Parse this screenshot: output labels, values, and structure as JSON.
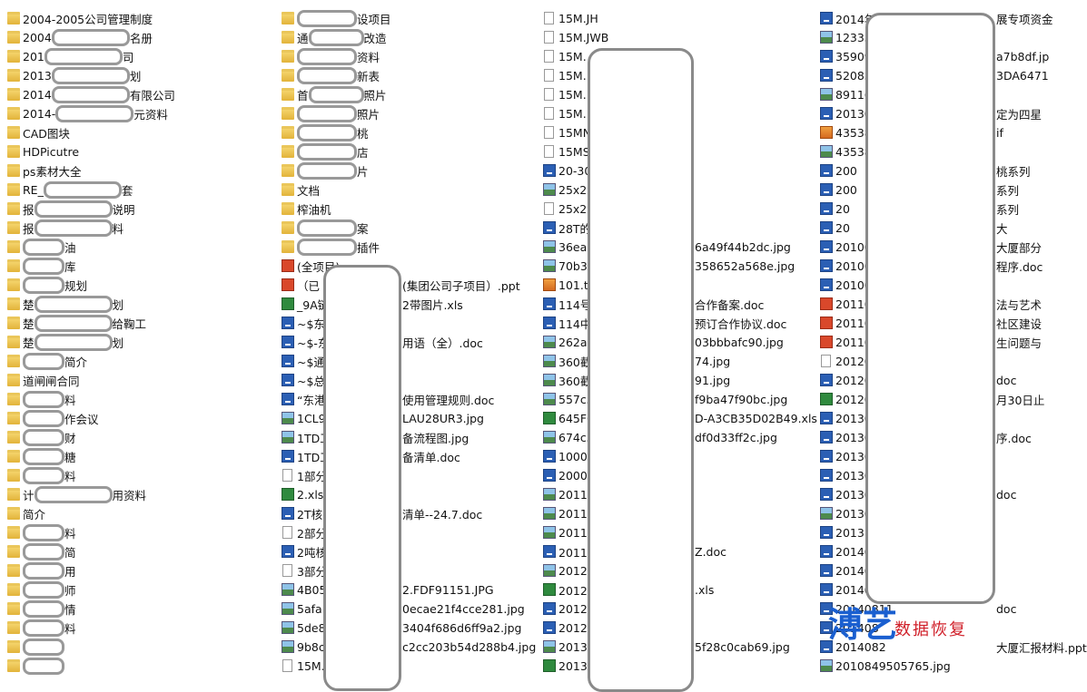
{
  "columns": [
    [
      {
        "icon": "folder",
        "parts": [
          "2004-2005公司管理制度"
        ]
      },
      {
        "icon": "folder",
        "parts": [
          "2004",
          "名册"
        ]
      },
      {
        "icon": "folder",
        "parts": [
          "201",
          "司"
        ]
      },
      {
        "icon": "folder",
        "parts": [
          "2013",
          "划"
        ]
      },
      {
        "icon": "folder",
        "parts": [
          "2014",
          "有限公司"
        ]
      },
      {
        "icon": "folder",
        "parts": [
          "2014-",
          "元资料"
        ]
      },
      {
        "icon": "folder",
        "parts": [
          "CAD图块"
        ]
      },
      {
        "icon": "folder",
        "parts": [
          "HDPicutre"
        ]
      },
      {
        "icon": "folder",
        "parts": [
          "ps素材大全"
        ]
      },
      {
        "icon": "folder",
        "parts": [
          "RE_",
          "套"
        ]
      },
      {
        "icon": "folder",
        "parts": [
          "报",
          "说明"
        ]
      },
      {
        "icon": "folder",
        "parts": [
          "报",
          "料"
        ]
      },
      {
        "icon": "folder",
        "parts": [
          "油"
        ],
        "redact": "start"
      },
      {
        "icon": "folder",
        "parts": [
          "库"
        ],
        "redact": "start"
      },
      {
        "icon": "folder",
        "parts": [
          "规划"
        ],
        "redact": "start"
      },
      {
        "icon": "folder",
        "parts": [
          "楚",
          "划"
        ]
      },
      {
        "icon": "folder",
        "parts": [
          "楚",
          "给鞠工"
        ]
      },
      {
        "icon": "folder",
        "parts": [
          "楚",
          "划"
        ]
      },
      {
        "icon": "folder",
        "parts": [
          "简介"
        ],
        "redact": "start"
      },
      {
        "icon": "folder",
        "parts": [
          "道闸闸合同"
        ]
      },
      {
        "icon": "folder",
        "parts": [
          "料"
        ],
        "redact": "start"
      },
      {
        "icon": "folder",
        "parts": [
          "作会议"
        ],
        "redact": "start"
      },
      {
        "icon": "folder",
        "parts": [
          "财"
        ],
        "redact": "start"
      },
      {
        "icon": "folder",
        "parts": [
          "糖"
        ],
        "redact": "start"
      },
      {
        "icon": "folder",
        "parts": [
          "料"
        ],
        "redact": "start"
      },
      {
        "icon": "folder",
        "parts": [
          "计",
          "用资料"
        ]
      },
      {
        "icon": "folder",
        "parts": [
          "简介"
        ]
      },
      {
        "icon": "folder",
        "parts": [
          "料"
        ],
        "redact": "start"
      },
      {
        "icon": "folder",
        "parts": [
          "简"
        ],
        "redact": "start"
      },
      {
        "icon": "folder",
        "parts": [
          "用"
        ],
        "redact": "start"
      },
      {
        "icon": "folder",
        "parts": [
          "师"
        ],
        "redact": "start"
      },
      {
        "icon": "folder",
        "parts": [
          "情"
        ],
        "redact": "start"
      },
      {
        "icon": "folder",
        "parts": [
          "料"
        ],
        "redact": "start"
      },
      {
        "icon": "folder",
        "parts": [],
        "redact": "start"
      },
      {
        "icon": "folder",
        "parts": [],
        "redact": "start"
      }
    ],
    [
      {
        "icon": "folder",
        "parts": [
          "设项目"
        ],
        "redact": "start"
      },
      {
        "icon": "folder",
        "parts": [
          "通",
          "改造"
        ]
      },
      {
        "icon": "folder",
        "parts": [
          "资料"
        ],
        "redact": "start"
      },
      {
        "icon": "folder",
        "parts": [
          "新表"
        ],
        "redact": "start"
      },
      {
        "icon": "folder",
        "parts": [
          "首",
          "照片"
        ]
      },
      {
        "icon": "folder",
        "parts": [
          "照片"
        ],
        "redact": "start"
      },
      {
        "icon": "folder",
        "parts": [
          "桃"
        ],
        "redact": "start"
      },
      {
        "icon": "folder",
        "parts": [
          "店"
        ],
        "redact": "start"
      },
      {
        "icon": "folder",
        "parts": [
          "片"
        ],
        "redact": "start"
      },
      {
        "icon": "folder",
        "parts": [
          "文档"
        ]
      },
      {
        "icon": "folder",
        "parts": [
          "榨油机"
        ]
      },
      {
        "icon": "folder",
        "parts": [
          "案"
        ],
        "redact": "start"
      },
      {
        "icon": "folder",
        "parts": [
          "插件"
        ],
        "redact": "start"
      },
      {
        "icon": "ppt",
        "parts": [
          "(全项目)"
        ]
      },
      {
        "icon": "ppt",
        "parts": [
          "（已",
          "(集团公司子项目）.ppt"
        ]
      },
      {
        "icon": "xls",
        "parts": [
          "_9A链",
          "2带图片.xls"
        ]
      },
      {
        "icon": "doc",
        "parts": [
          "~$东"
        ]
      },
      {
        "icon": "doc",
        "parts": [
          "~$-东",
          "用语（全）.doc"
        ]
      },
      {
        "icon": "doc",
        "parts": [
          "~$通"
        ]
      },
      {
        "icon": "doc",
        "parts": [
          "~$总"
        ]
      },
      {
        "icon": "doc",
        "parts": [
          "“东港",
          "使用管理规则.doc"
        ]
      },
      {
        "icon": "img",
        "parts": [
          "1CL9",
          "LAU28UR3.jpg"
        ]
      },
      {
        "icon": "img",
        "parts": [
          "1TD工",
          "备流程图.jpg"
        ]
      },
      {
        "icon": "doc",
        "parts": [
          "1TD工",
          "备清单.doc"
        ]
      },
      {
        "icon": "file",
        "parts": [
          "1部分"
        ]
      },
      {
        "icon": "xls",
        "parts": [
          "2.xls"
        ]
      },
      {
        "icon": "doc",
        "parts": [
          "2T核",
          "清单--24.7.doc"
        ]
      },
      {
        "icon": "file",
        "parts": [
          "2部分"
        ]
      },
      {
        "icon": "doc",
        "parts": [
          "2吨核"
        ]
      },
      {
        "icon": "file",
        "parts": [
          "3部分"
        ]
      },
      {
        "icon": "img",
        "parts": [
          "4B05",
          "2.FDF91151.JPG"
        ]
      },
      {
        "icon": "img",
        "parts": [
          "5afa",
          "0ecae21f4cce281.jpg"
        ]
      },
      {
        "icon": "img",
        "parts": [
          "5de8",
          "3404f686d6ff9a2.jpg"
        ]
      },
      {
        "icon": "img",
        "parts": [
          "9b8c",
          "c2cc203b54d288b4.jpg"
        ]
      },
      {
        "icon": "file",
        "parts": [
          "15M."
        ]
      }
    ],
    [
      {
        "icon": "file",
        "parts": [
          "15M.JH"
        ]
      },
      {
        "icon": "file",
        "parts": [
          "15M.JWB"
        ]
      },
      {
        "icon": "file",
        "parts": [
          "15M."
        ]
      },
      {
        "icon": "file",
        "parts": [
          "15M."
        ]
      },
      {
        "icon": "file",
        "parts": [
          "15M."
        ]
      },
      {
        "icon": "file",
        "parts": [
          "15M."
        ]
      },
      {
        "icon": "file",
        "parts": [
          "15MN"
        ]
      },
      {
        "icon": "file",
        "parts": [
          "15MS"
        ]
      },
      {
        "icon": "doc",
        "parts": [
          "20-30"
        ]
      },
      {
        "icon": "img",
        "parts": [
          "25x20"
        ]
      },
      {
        "icon": "file",
        "parts": [
          "25x20"
        ]
      },
      {
        "icon": "doc",
        "parts": [
          "28T的"
        ]
      },
      {
        "icon": "img",
        "parts": [
          "36ea0",
          "6a49f44b2dc.jpg"
        ]
      },
      {
        "icon": "img",
        "parts": [
          "70b3",
          "358652a568e.jpg"
        ]
      },
      {
        "icon": "tif",
        "parts": [
          "101.ti"
        ]
      },
      {
        "icon": "doc",
        "parts": [
          "114号",
          "合作备案.doc"
        ]
      },
      {
        "icon": "doc",
        "parts": [
          "114中",
          "预订合作协议.doc"
        ]
      },
      {
        "icon": "img",
        "parts": [
          "262a",
          "03bbbafc90.jpg"
        ]
      },
      {
        "icon": "img",
        "parts": [
          "360截",
          "74.jpg"
        ]
      },
      {
        "icon": "img",
        "parts": [
          "360截",
          "91.jpg"
        ]
      },
      {
        "icon": "img",
        "parts": [
          "557c5",
          "f9ba47f90bc.jpg"
        ]
      },
      {
        "icon": "xls",
        "parts": [
          "645F0",
          "D-A3CB35D02B49.xls"
        ]
      },
      {
        "icon": "img",
        "parts": [
          "674c5",
          "df0d33ff2c.jpg"
        ]
      },
      {
        "icon": "doc",
        "parts": [
          "1000"
        ]
      },
      {
        "icon": "doc",
        "parts": [
          "2000"
        ]
      },
      {
        "icon": "img",
        "parts": [
          "2011-"
        ]
      },
      {
        "icon": "img",
        "parts": [
          "2011-"
        ]
      },
      {
        "icon": "img",
        "parts": [
          "2011-"
        ]
      },
      {
        "icon": "doc",
        "parts": [
          "2011年",
          "Z.doc"
        ]
      },
      {
        "icon": "img",
        "parts": [
          "2012-"
        ]
      },
      {
        "icon": "xls",
        "parts": [
          "2012年",
          ".xls"
        ]
      },
      {
        "icon": "doc",
        "parts": [
          "2012"
        ]
      },
      {
        "icon": "doc",
        "parts": [
          "2012"
        ]
      },
      {
        "icon": "img",
        "parts": [
          "2013",
          "5f28c0cab69.jpg"
        ]
      },
      {
        "icon": "xls",
        "parts": [
          "2013"
        ]
      }
    ],
    [
      {
        "icon": "doc",
        "parts": [
          "2014年",
          "展专项资金"
        ]
      },
      {
        "icon": "img",
        "parts": [
          "12333"
        ]
      },
      {
        "icon": "doc",
        "parts": [
          "35909",
          "a7b8df.jp"
        ]
      },
      {
        "icon": "doc",
        "parts": [
          "52083",
          "3DA6471"
        ]
      },
      {
        "icon": "img",
        "parts": [
          "89116"
        ]
      },
      {
        "icon": "doc",
        "parts": [
          "20130",
          "定为四星"
        ]
      },
      {
        "icon": "tif",
        "parts": [
          "43538",
          "if"
        ]
      },
      {
        "icon": "img",
        "parts": [
          "43538"
        ]
      },
      {
        "icon": "doc",
        "parts": [
          "200",
          "桃系列"
        ]
      },
      {
        "icon": "doc",
        "parts": [
          "200",
          "系列"
        ]
      },
      {
        "icon": "doc",
        "parts": [
          "20",
          "系列"
        ]
      },
      {
        "icon": "doc",
        "parts": [
          "20",
          "大"
        ]
      },
      {
        "icon": "doc",
        "parts": [
          "20100",
          "大厦部分"
        ]
      },
      {
        "icon": "doc",
        "parts": [
          "20100",
          "程序.doc"
        ]
      },
      {
        "icon": "doc",
        "parts": [
          "20100"
        ]
      },
      {
        "icon": "ppt",
        "parts": [
          "20110",
          "法与艺术"
        ]
      },
      {
        "icon": "ppt",
        "parts": [
          "20110",
          "社区建设"
        ]
      },
      {
        "icon": "ppt",
        "parts": [
          "20110",
          "生问题与"
        ]
      },
      {
        "icon": "file",
        "parts": [
          "20120"
        ]
      },
      {
        "icon": "doc",
        "parts": [
          "20120",
          "doc"
        ]
      },
      {
        "icon": "xls",
        "parts": [
          "20120",
          "月30日止"
        ]
      },
      {
        "icon": "doc",
        "parts": [
          "20130"
        ]
      },
      {
        "icon": "doc",
        "parts": [
          "20130",
          "序.doc"
        ]
      },
      {
        "icon": "doc",
        "parts": [
          "20130"
        ]
      },
      {
        "icon": "doc",
        "parts": [
          "20130"
        ]
      },
      {
        "icon": "doc",
        "parts": [
          "20130",
          "doc"
        ]
      },
      {
        "icon": "img",
        "parts": [
          "20130"
        ]
      },
      {
        "icon": "doc",
        "parts": [
          "20131"
        ]
      },
      {
        "icon": "doc",
        "parts": [
          "20140"
        ]
      },
      {
        "icon": "doc",
        "parts": [
          "20140"
        ]
      },
      {
        "icon": "doc",
        "parts": [
          "20140"
        ]
      },
      {
        "icon": "doc",
        "parts": [
          "20140811",
          "doc"
        ]
      },
      {
        "icon": "doc",
        "parts": [
          "201408"
        ]
      },
      {
        "icon": "doc",
        "parts": [
          "2014082",
          "大厦汇报材料.ppt"
        ]
      },
      {
        "icon": "img",
        "parts": [
          "2010849505765.jpg"
        ]
      }
    ]
  ],
  "watermark": {
    "logo": "溥艺",
    "text": "数据恢复"
  }
}
